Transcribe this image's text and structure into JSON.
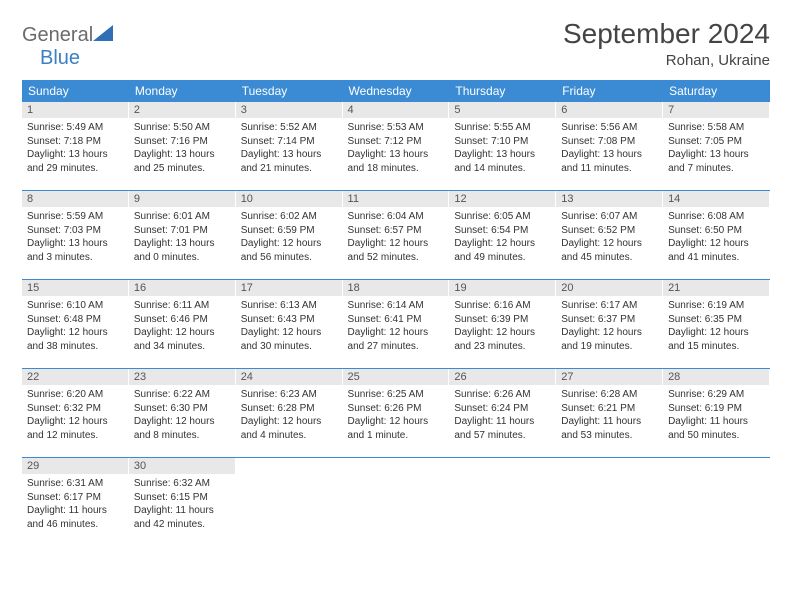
{
  "logo": {
    "word1": "General",
    "word2": "Blue",
    "icon_color": "#2e6fb5"
  },
  "title": "September 2024",
  "location": "Rohan, Ukraine",
  "colors": {
    "header_bg": "#3b8bd4",
    "header_text": "#ffffff",
    "daynum_bg": "#e8e8e8",
    "row_border": "#3b8bd4",
    "body_text": "#333333"
  },
  "day_headers": [
    "Sunday",
    "Monday",
    "Tuesday",
    "Wednesday",
    "Thursday",
    "Friday",
    "Saturday"
  ],
  "days": [
    {
      "n": 1,
      "sunrise": "5:49 AM",
      "sunset": "7:18 PM",
      "dl": "13 hours and 29 minutes."
    },
    {
      "n": 2,
      "sunrise": "5:50 AM",
      "sunset": "7:16 PM",
      "dl": "13 hours and 25 minutes."
    },
    {
      "n": 3,
      "sunrise": "5:52 AM",
      "sunset": "7:14 PM",
      "dl": "13 hours and 21 minutes."
    },
    {
      "n": 4,
      "sunrise": "5:53 AM",
      "sunset": "7:12 PM",
      "dl": "13 hours and 18 minutes."
    },
    {
      "n": 5,
      "sunrise": "5:55 AM",
      "sunset": "7:10 PM",
      "dl": "13 hours and 14 minutes."
    },
    {
      "n": 6,
      "sunrise": "5:56 AM",
      "sunset": "7:08 PM",
      "dl": "13 hours and 11 minutes."
    },
    {
      "n": 7,
      "sunrise": "5:58 AM",
      "sunset": "7:05 PM",
      "dl": "13 hours and 7 minutes."
    },
    {
      "n": 8,
      "sunrise": "5:59 AM",
      "sunset": "7:03 PM",
      "dl": "13 hours and 3 minutes."
    },
    {
      "n": 9,
      "sunrise": "6:01 AM",
      "sunset": "7:01 PM",
      "dl": "13 hours and 0 minutes."
    },
    {
      "n": 10,
      "sunrise": "6:02 AM",
      "sunset": "6:59 PM",
      "dl": "12 hours and 56 minutes."
    },
    {
      "n": 11,
      "sunrise": "6:04 AM",
      "sunset": "6:57 PM",
      "dl": "12 hours and 52 minutes."
    },
    {
      "n": 12,
      "sunrise": "6:05 AM",
      "sunset": "6:54 PM",
      "dl": "12 hours and 49 minutes."
    },
    {
      "n": 13,
      "sunrise": "6:07 AM",
      "sunset": "6:52 PM",
      "dl": "12 hours and 45 minutes."
    },
    {
      "n": 14,
      "sunrise": "6:08 AM",
      "sunset": "6:50 PM",
      "dl": "12 hours and 41 minutes."
    },
    {
      "n": 15,
      "sunrise": "6:10 AM",
      "sunset": "6:48 PM",
      "dl": "12 hours and 38 minutes."
    },
    {
      "n": 16,
      "sunrise": "6:11 AM",
      "sunset": "6:46 PM",
      "dl": "12 hours and 34 minutes."
    },
    {
      "n": 17,
      "sunrise": "6:13 AM",
      "sunset": "6:43 PM",
      "dl": "12 hours and 30 minutes."
    },
    {
      "n": 18,
      "sunrise": "6:14 AM",
      "sunset": "6:41 PM",
      "dl": "12 hours and 27 minutes."
    },
    {
      "n": 19,
      "sunrise": "6:16 AM",
      "sunset": "6:39 PM",
      "dl": "12 hours and 23 minutes."
    },
    {
      "n": 20,
      "sunrise": "6:17 AM",
      "sunset": "6:37 PM",
      "dl": "12 hours and 19 minutes."
    },
    {
      "n": 21,
      "sunrise": "6:19 AM",
      "sunset": "6:35 PM",
      "dl": "12 hours and 15 minutes."
    },
    {
      "n": 22,
      "sunrise": "6:20 AM",
      "sunset": "6:32 PM",
      "dl": "12 hours and 12 minutes."
    },
    {
      "n": 23,
      "sunrise": "6:22 AM",
      "sunset": "6:30 PM",
      "dl": "12 hours and 8 minutes."
    },
    {
      "n": 24,
      "sunrise": "6:23 AM",
      "sunset": "6:28 PM",
      "dl": "12 hours and 4 minutes."
    },
    {
      "n": 25,
      "sunrise": "6:25 AM",
      "sunset": "6:26 PM",
      "dl": "12 hours and 1 minute."
    },
    {
      "n": 26,
      "sunrise": "6:26 AM",
      "sunset": "6:24 PM",
      "dl": "11 hours and 57 minutes."
    },
    {
      "n": 27,
      "sunrise": "6:28 AM",
      "sunset": "6:21 PM",
      "dl": "11 hours and 53 minutes."
    },
    {
      "n": 28,
      "sunrise": "6:29 AM",
      "sunset": "6:19 PM",
      "dl": "11 hours and 50 minutes."
    },
    {
      "n": 29,
      "sunrise": "6:31 AM",
      "sunset": "6:17 PM",
      "dl": "11 hours and 46 minutes."
    },
    {
      "n": 30,
      "sunrise": "6:32 AM",
      "sunset": "6:15 PM",
      "dl": "11 hours and 42 minutes."
    }
  ],
  "labels": {
    "sunrise": "Sunrise:",
    "sunset": "Sunset:",
    "daylight": "Daylight:"
  }
}
